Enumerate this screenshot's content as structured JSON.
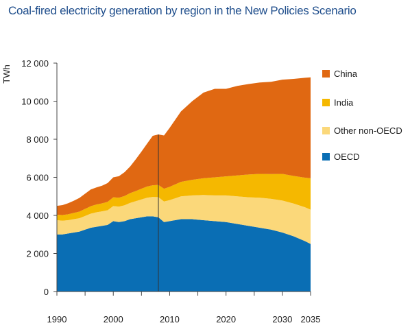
{
  "chart_data": {
    "type": "area",
    "stacked": true,
    "title": "Coal-fired electricity generation by region in the New Policies Scenario",
    "ylabel": "TWh",
    "xlabel": "",
    "ylim": [
      0,
      12000
    ],
    "xlim": [
      1990,
      2035
    ],
    "grid": false,
    "legend_position": "right",
    "y_ticks": [
      0,
      2000,
      4000,
      6000,
      8000,
      10000,
      12000
    ],
    "y_tick_labels": [
      "0",
      "2 000",
      "4 000",
      "6 000",
      "8 000",
      "10 000",
      "12 000"
    ],
    "x_ticks": [
      1990,
      1995,
      2000,
      2005,
      2010,
      2015,
      2020,
      2025,
      2030,
      2035
    ],
    "x_tick_labels": [
      "1990",
      "",
      "2000",
      "",
      "2010",
      "",
      "2020",
      "",
      "2030",
      "2035"
    ],
    "reference_line_x": 2008,
    "x": [
      1990,
      1991,
      1992,
      1993,
      1994,
      1995,
      1996,
      1997,
      1998,
      1999,
      2000,
      2001,
      2002,
      2003,
      2004,
      2005,
      2006,
      2007,
      2008,
      2009,
      2010,
      2012,
      2014,
      2016,
      2018,
      2020,
      2022,
      2024,
      2026,
      2028,
      2030,
      2032,
      2034,
      2035
    ],
    "series": [
      {
        "name": "OECD",
        "color": "#0a6eb4",
        "values": [
          3000,
          3000,
          3050,
          3100,
          3150,
          3250,
          3350,
          3400,
          3450,
          3500,
          3700,
          3650,
          3700,
          3800,
          3850,
          3900,
          3950,
          3950,
          3900,
          3650,
          3700,
          3800,
          3800,
          3750,
          3700,
          3650,
          3550,
          3450,
          3350,
          3250,
          3100,
          2900,
          2650,
          2500
        ]
      },
      {
        "name": "Other non-OECD",
        "color": "#fbd87a",
        "values": [
          750,
          720,
          700,
          700,
          700,
          720,
          740,
          760,
          760,
          770,
          790,
          810,
          830,
          860,
          900,
          940,
          980,
          1020,
          1060,
          1080,
          1100,
          1200,
          1250,
          1320,
          1350,
          1400,
          1450,
          1500,
          1580,
          1620,
          1680,
          1720,
          1780,
          1800
        ]
      },
      {
        "name": "India",
        "color": "#f5b800",
        "values": [
          280,
          300,
          310,
          330,
          350,
          370,
          390,
          410,
          420,
          440,
          460,
          470,
          490,
          510,
          530,
          560,
          590,
          610,
          640,
          670,
          700,
          760,
          820,
          880,
          950,
          1000,
          1100,
          1200,
          1250,
          1300,
          1400,
          1450,
          1550,
          1650
        ]
      },
      {
        "name": "China",
        "color": "#e06812",
        "values": [
          470,
          520,
          580,
          640,
          720,
          800,
          880,
          900,
          930,
          990,
          1050,
          1130,
          1250,
          1400,
          1670,
          1950,
          2250,
          2600,
          2650,
          2800,
          3100,
          3700,
          4130,
          4500,
          4650,
          4600,
          4700,
          4750,
          4800,
          4850,
          4950,
          5100,
          5250,
          5300
        ]
      }
    ]
  }
}
